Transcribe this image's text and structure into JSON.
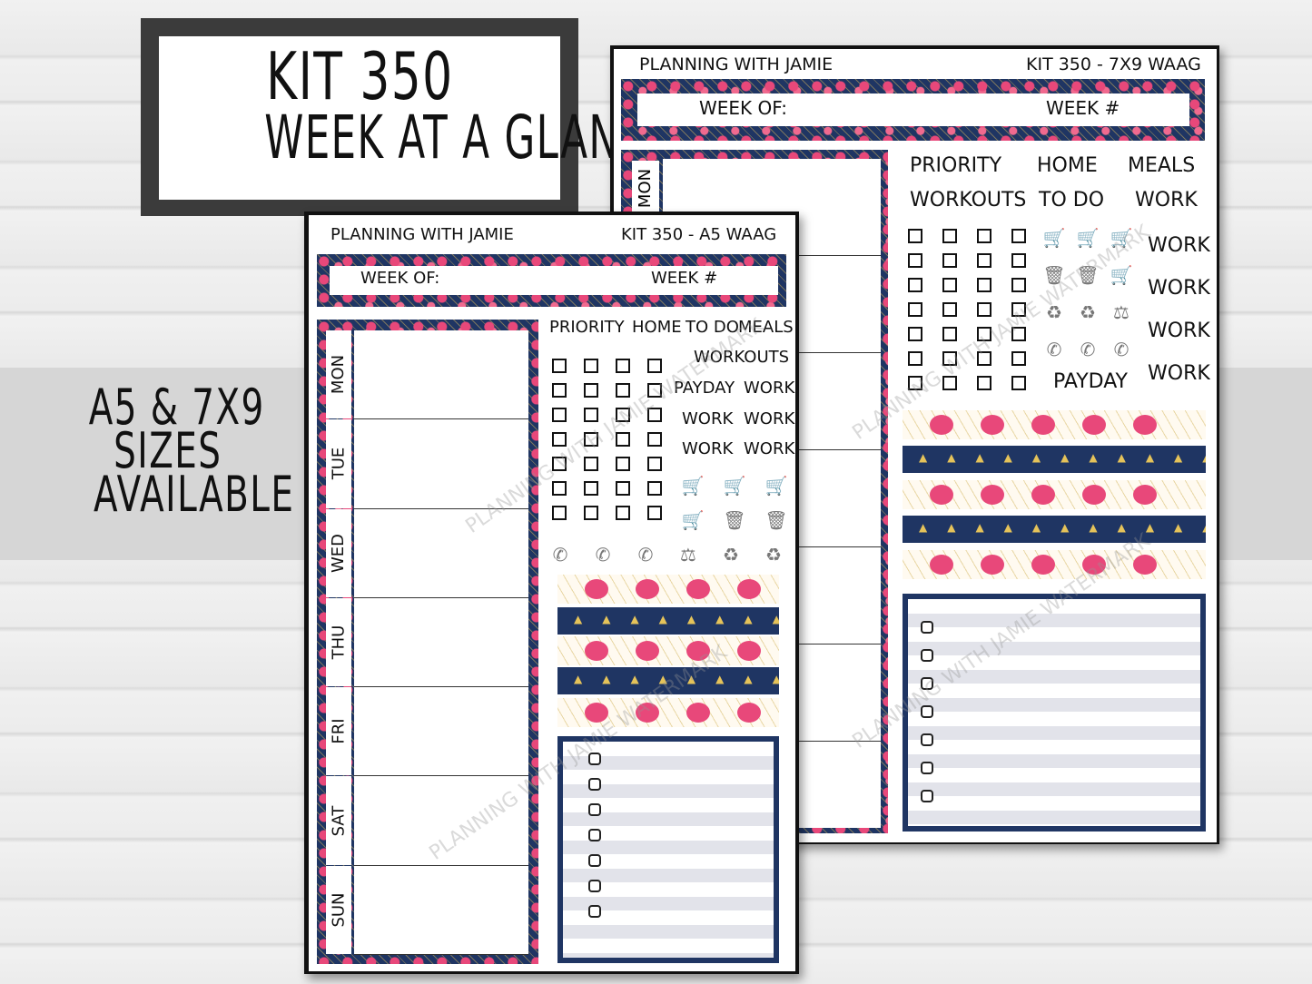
{
  "title_box": {
    "line1": "KIT 350",
    "line2": "WEEK AT A GLANCE"
  },
  "sizes_note": {
    "line1": "A5 & 7X9",
    "line2": "SIZES",
    "line3": "AVAILABLE"
  },
  "back_sheet": {
    "brand": "PLANNING WITH JAMIE",
    "kit": "KIT 350 - 7X9 WAAG",
    "week_of": "WEEK OF:",
    "week_num": "WEEK #",
    "day_visible": "MON",
    "labels_row1": [
      "PRIORITY",
      "HOME",
      "MEALS"
    ],
    "labels_row2": [
      "WORKOUTS",
      "TO DO",
      "WORK"
    ],
    "work_labels": [
      "WORK",
      "WORK",
      "WORK",
      "WORK"
    ],
    "payday": "PAYDAY",
    "icons": [
      [
        "cart-icon",
        "cart-icon",
        "cart-icon"
      ],
      [
        "trash-icon",
        "trash-icon",
        "cart-icon"
      ],
      [
        "recycle-icon",
        "recycle-icon",
        "scale-icon"
      ],
      [
        "phone-icon",
        "phone-icon",
        "phone-icon"
      ]
    ],
    "watermark": "PLANNING WITH JAMIE WATERMARK"
  },
  "front_sheet": {
    "brand": "PLANNING WITH JAMIE",
    "kit": "KIT 350 - A5 WAAG",
    "week_of": "WEEK OF:",
    "week_num": "WEEK #",
    "days": [
      "MON",
      "TUE",
      "WED",
      "THU",
      "FRI",
      "SAT",
      "SUN"
    ],
    "labels_row1": [
      "PRIORITY",
      "HOME",
      "TO DO",
      "MEALS"
    ],
    "workouts": "WORKOUTS",
    "label_pairs": [
      [
        "PAYDAY",
        "WORK"
      ],
      [
        "WORK",
        "WORK"
      ],
      [
        "WORK",
        "WORK"
      ]
    ],
    "icons": [
      [
        "cart-icon",
        "cart-icon",
        "cart-icon"
      ],
      [
        "cart-icon",
        "trash-icon",
        "trash-icon"
      ]
    ],
    "icons_row3": [
      "phone-icon",
      "phone-icon",
      "phone-icon",
      "scale-icon",
      "recycle-icon",
      "recycle-icon"
    ],
    "watermark": "PLANNING WITH JAMIE WATERMARK"
  },
  "colors": {
    "navy": "#1f3563",
    "pink": "#e8487a",
    "gold": "#e5c35a",
    "frame": "#3b3b3b"
  }
}
